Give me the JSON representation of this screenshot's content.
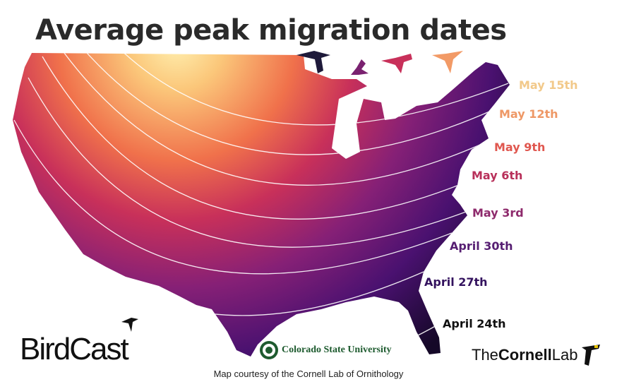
{
  "title": "Average peak migration dates",
  "contour_labels": [
    {
      "text": "May 15th",
      "color": "#f2c98a"
    },
    {
      "text": "May 12th",
      "color": "#ee9866"
    },
    {
      "text": "May 9th",
      "color": "#e0574f"
    },
    {
      "text": "May 6th",
      "color": "#b8305a"
    },
    {
      "text": "May 3rd",
      "color": "#8e2a6c"
    },
    {
      "text": "April 30th",
      "color": "#561e72"
    },
    {
      "text": "April 27th",
      "color": "#33125e"
    },
    {
      "text": "April 24th",
      "color": "#111111"
    }
  ],
  "color_scale": {
    "early": "#2c0a55",
    "mid": "#c8305a",
    "late": "#fde3a0"
  },
  "logos": {
    "birdcast": "BirdCast",
    "csu": "Colorado State University",
    "cornell_the": "The",
    "cornell_name": "Cornell",
    "cornell_lab": "Lab"
  },
  "credit": "Map courtesy of the Cornell Lab of Ornithology"
}
